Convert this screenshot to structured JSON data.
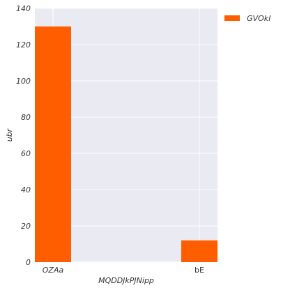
{
  "chart_data": {
    "type": "bar",
    "categories": [
      "OZAa",
      "bE"
    ],
    "category_italic": [
      true,
      false
    ],
    "series": [
      {
        "name": "GVOkl",
        "values": [
          130,
          12
        ],
        "color": "#ff5e00"
      }
    ],
    "xlabel": "MQDDJkPJNipp",
    "ylabel": "ubr",
    "ylim": [
      0,
      140
    ],
    "yticks": [
      0,
      20,
      40,
      60,
      80,
      100,
      120,
      140
    ],
    "grid": true,
    "legend_position": "outside-top-right",
    "background_color": "#eaeaf2",
    "grid_color": "#ffffff"
  }
}
